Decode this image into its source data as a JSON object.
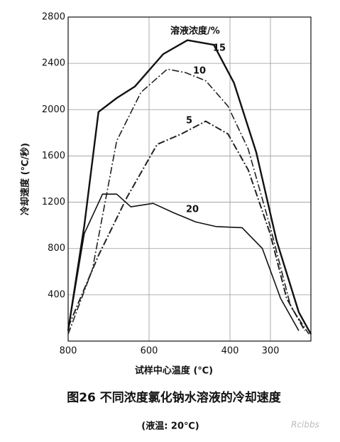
{
  "chart_data": {
    "type": "line",
    "y_label": "冷却速度 (℃/秒)",
    "x_label": "试样中心温度 (℃)",
    "legend_title": "溶液浓度/%",
    "caption": "图26   不同浓度氯化钠水溶液的冷却速度",
    "subcaption": "(液温: 20℃)",
    "watermark": "Rcibbs",
    "xlim": [
      800,
      200
    ],
    "xticks": [
      800,
      600,
      400,
      300
    ],
    "ylim": [
      0,
      2800
    ],
    "yticks": [
      400,
      800,
      1200,
      1600,
      2000,
      2400,
      2800
    ],
    "grid": true,
    "series": [
      {
        "name": "15",
        "color": "#111111",
        "dash": "solid",
        "width": 2.4,
        "x": [
          800,
          760,
          725,
          680,
          635,
          565,
          505,
          440,
          390,
          335,
          285,
          230,
          200
        ],
        "values": [
          90,
          1000,
          1980,
          2100,
          2200,
          2480,
          2600,
          2560,
          2230,
          1630,
          870,
          250,
          60
        ]
      },
      {
        "name": "10",
        "color": "#222222",
        "dash": "dashdot",
        "width": 1.6,
        "x": [
          800,
          740,
          680,
          620,
          555,
          510,
          460,
          405,
          355,
          300,
          250,
          205
        ],
        "values": [
          60,
          620,
          1730,
          2150,
          2350,
          2320,
          2250,
          2030,
          1660,
          980,
          300,
          60
        ]
      },
      {
        "name": "5",
        "color": "#222222",
        "dash": "dashdot",
        "width": 2,
        "x": [
          800,
          725,
          655,
          580,
          520,
          460,
          405,
          355,
          300,
          260,
          215
        ],
        "values": [
          120,
          740,
          1240,
          1700,
          1790,
          1900,
          1790,
          1480,
          920,
          370,
          90
        ]
      },
      {
        "name": "20",
        "color": "#111111",
        "dash": "solid",
        "width": 1.6,
        "x": [
          800,
          760,
          715,
          680,
          645,
          590,
          540,
          485,
          435,
          370,
          320,
          275,
          230
        ],
        "values": [
          90,
          930,
          1270,
          1270,
          1160,
          1190,
          1110,
          1030,
          990,
          980,
          800,
          370,
          90
        ]
      }
    ]
  }
}
